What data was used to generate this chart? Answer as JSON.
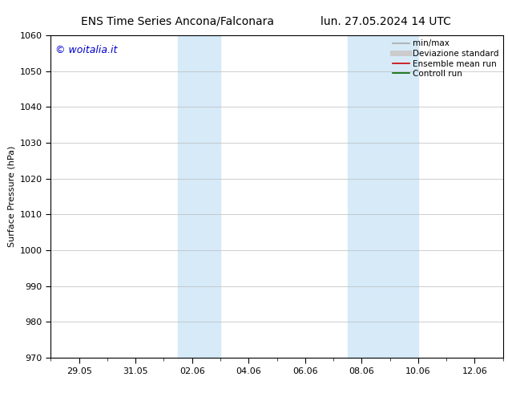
{
  "title_left": "ENS Time Series Ancona/Falconara",
  "title_right": "lun. 27.05.2024 14 UTC",
  "ylabel": "Surface Pressure (hPa)",
  "ylim": [
    970,
    1060
  ],
  "yticks": [
    970,
    980,
    990,
    1000,
    1010,
    1020,
    1030,
    1040,
    1050,
    1060
  ],
  "x_date_labels": [
    "29.05",
    "31.05",
    "02.06",
    "04.06",
    "06.06",
    "08.06",
    "10.06",
    "12.06"
  ],
  "x_date_positions": [
    1,
    3,
    5,
    7,
    9,
    11,
    13,
    15
  ],
  "xlim": [
    0,
    16
  ],
  "shaded_bands": [
    {
      "x_start": 4.5,
      "x_end": 6.0,
      "color": "#d6eaf8"
    },
    {
      "x_start": 10.5,
      "x_end": 13.0,
      "color": "#d6eaf8"
    }
  ],
  "watermark_text": "© woitalia.it",
  "watermark_color": "#0000cc",
  "legend_entries": [
    {
      "label": "min/max",
      "color": "#aaaaaa",
      "lw": 1.2,
      "style": "-"
    },
    {
      "label": "Deviazione standard",
      "color": "#cccccc",
      "lw": 5.0,
      "style": "-"
    },
    {
      "label": "Ensemble mean run",
      "color": "#cc0000",
      "lw": 1.2,
      "style": "-"
    },
    {
      "label": "Controll run",
      "color": "#006600",
      "lw": 1.2,
      "style": "-"
    }
  ],
  "background_color": "#ffffff",
  "axes_facecolor": "#ffffff",
  "grid_color": "#bbbbbb",
  "title_fontsize": 10,
  "label_fontsize": 8,
  "tick_fontsize": 8,
  "legend_fontsize": 7.5,
  "watermark_fontsize": 9
}
